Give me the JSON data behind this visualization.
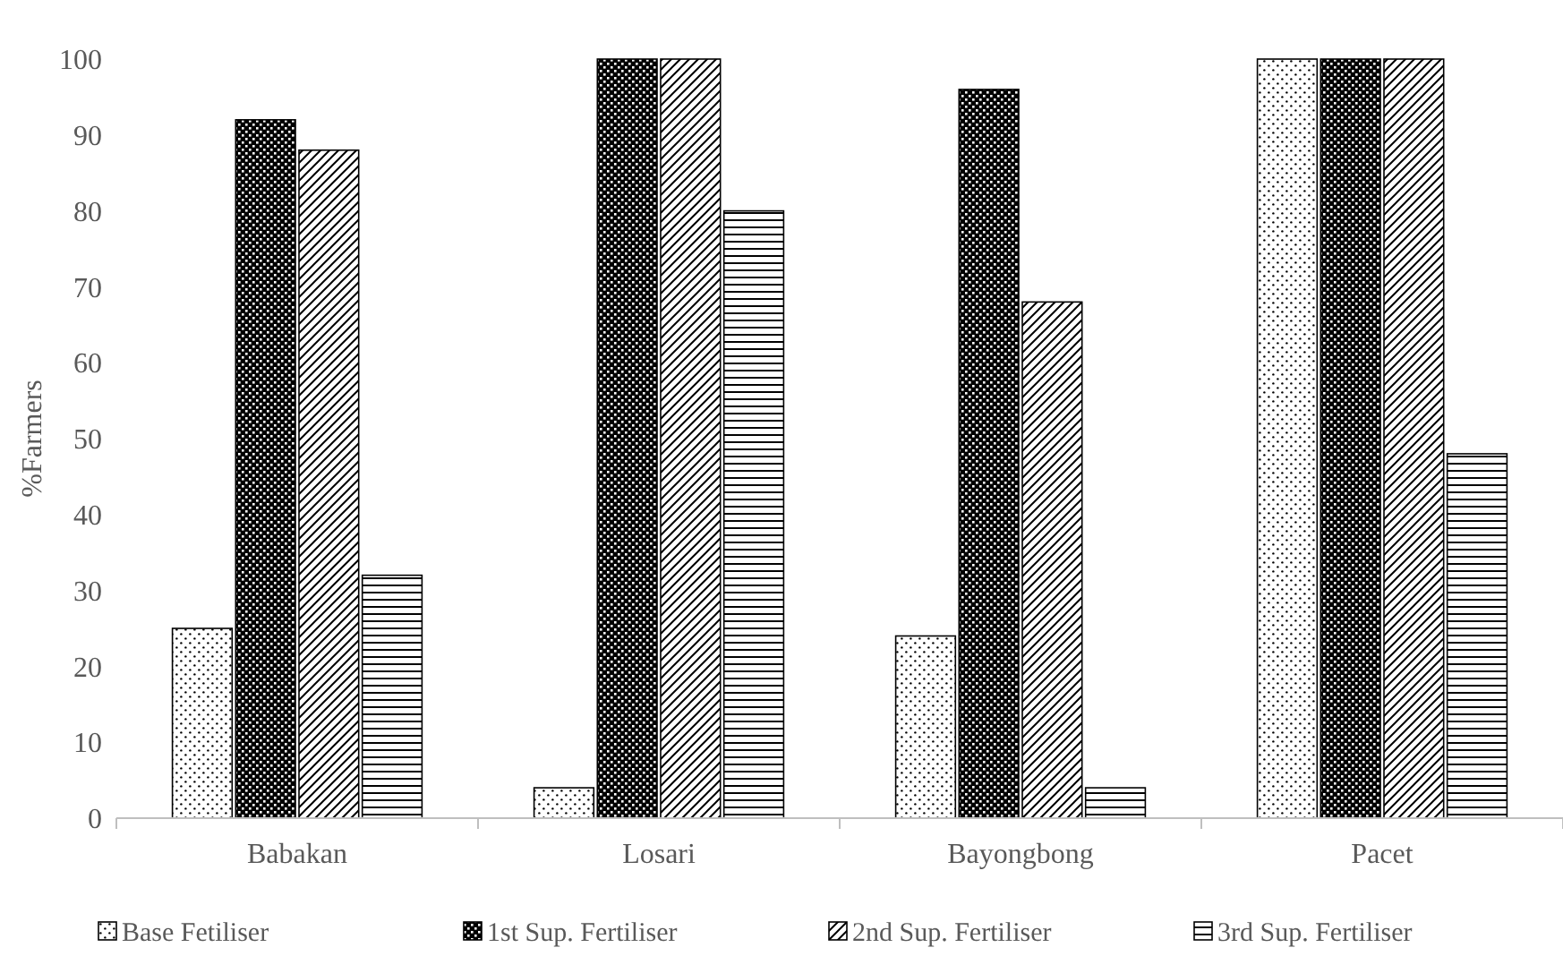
{
  "chart_data": {
    "type": "bar",
    "ylabel": "%Farmers",
    "categories": [
      "Babakan",
      "Losari",
      "Bayongbong",
      "Pacet"
    ],
    "series": [
      {
        "name": "Base Fetiliser",
        "color": "#000000",
        "values": [
          25,
          4,
          24,
          100
        ]
      },
      {
        "name": "1st Sup. Fertiliser",
        "color": "#000000",
        "values": [
          92,
          100,
          96,
          100
        ]
      },
      {
        "name": "2nd Sup. Fertiliser",
        "color": "#000000",
        "values": [
          88,
          100,
          68,
          100
        ]
      },
      {
        "name": "3rd Sup. Fertiliser",
        "color": "#000000",
        "values": [
          32,
          80,
          4,
          48
        ]
      }
    ],
    "ylim": [
      0,
      100
    ],
    "yticks": [
      0,
      10,
      20,
      30,
      40,
      50,
      60,
      70,
      80,
      90,
      100
    ],
    "grid": false,
    "legend": "bottom"
  }
}
